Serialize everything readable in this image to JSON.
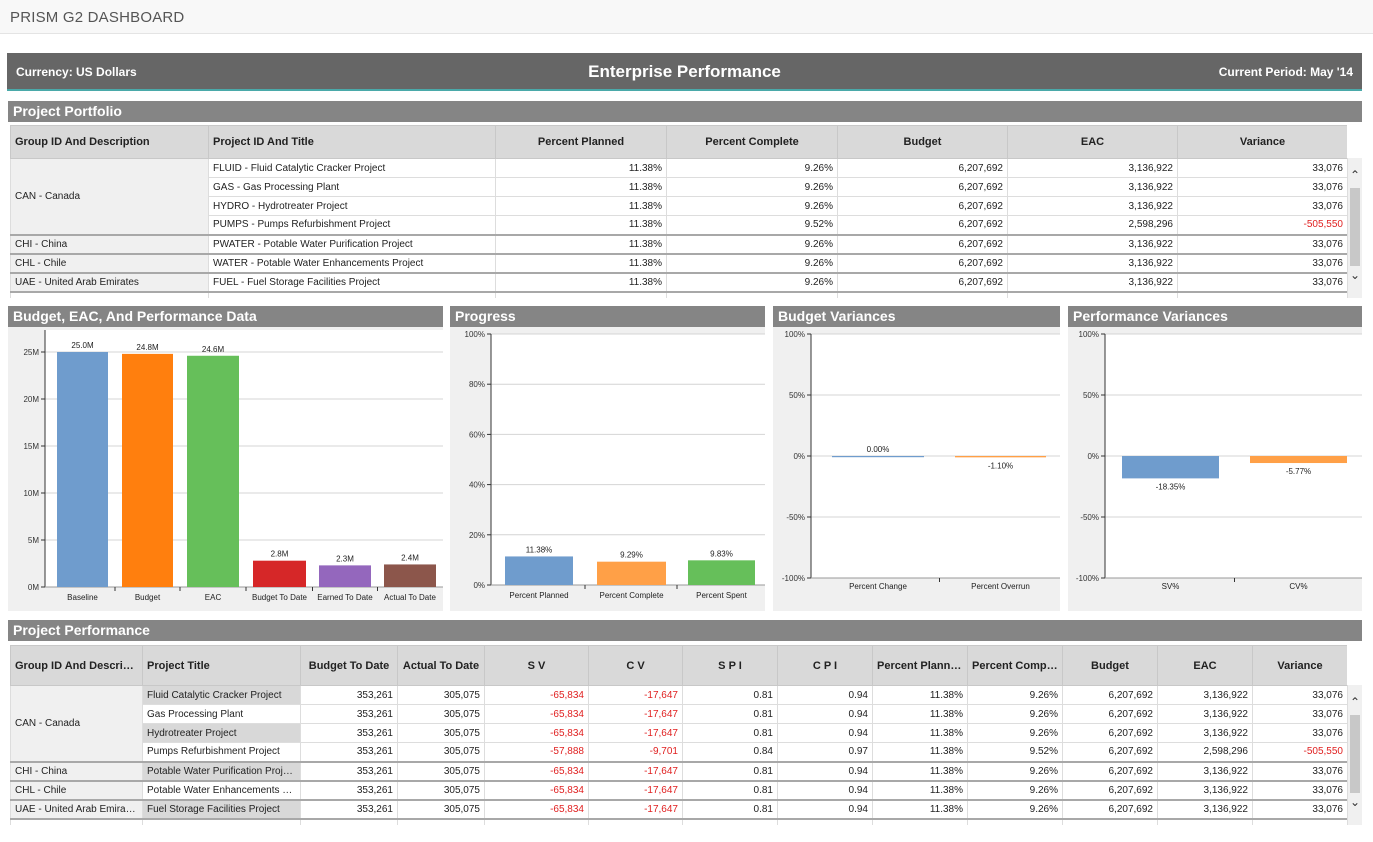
{
  "app": {
    "title": "PRISM G2 DASHBOARD"
  },
  "header": {
    "currency": "Currency: US Dollars",
    "title": "Enterprise Performance",
    "period": "Current Period: May '14"
  },
  "portfolio": {
    "title": "Project Portfolio",
    "columns": [
      "Group ID And Description",
      "Project ID And Title",
      "Percent Planned",
      "Percent Complete",
      "Budget",
      "EAC",
      "Variance"
    ],
    "groups": [
      {
        "group": "CAN - Canada",
        "rows": [
          [
            "FLUID - Fluid Catalytic Cracker Project",
            "11.38%",
            "9.26%",
            "6,207,692",
            "3,136,922",
            "33,076"
          ],
          [
            "GAS - Gas Processing Plant",
            "11.38%",
            "9.26%",
            "6,207,692",
            "3,136,922",
            "33,076"
          ],
          [
            "HYDRO - Hydrotreater Project",
            "11.38%",
            "9.26%",
            "6,207,692",
            "3,136,922",
            "33,076"
          ],
          [
            "PUMPS - Pumps Refurbishment Project",
            "11.38%",
            "9.52%",
            "6,207,692",
            "2,598,296",
            "-505,550"
          ]
        ]
      },
      {
        "group": "CHI - China",
        "rows": [
          [
            "PWATER - Potable Water Purification Project",
            "11.38%",
            "9.26%",
            "6,207,692",
            "3,136,922",
            "33,076"
          ]
        ]
      },
      {
        "group": "CHL - Chile",
        "rows": [
          [
            "WATER - Potable Water Enhancements Project",
            "11.38%",
            "9.26%",
            "6,207,692",
            "3,136,922",
            "33,076"
          ]
        ]
      },
      {
        "group": "UAE - United Arab Emirates",
        "rows": [
          [
            "FUEL - Fuel Storage Facilities Project",
            "11.38%",
            "9.26%",
            "6,207,692",
            "3,136,922",
            "33,076"
          ]
        ]
      }
    ]
  },
  "performance": {
    "title": "Project Performance",
    "columns": [
      "Group ID And Description",
      "Project Title",
      "Budget To Date",
      "Actual To Date",
      "S V",
      "C V",
      "S P I",
      "C P I",
      "Percent Planned",
      "Percent Complete",
      "Budget",
      "EAC",
      "Variance"
    ],
    "groups": [
      {
        "group": "CAN - Canada",
        "rows": [
          [
            "Fluid Catalytic Cracker Project",
            "353,261",
            "305,075",
            "-65,834",
            "-17,647",
            "0.81",
            "0.94",
            "11.38%",
            "9.26%",
            "6,207,692",
            "3,136,922",
            "33,076"
          ],
          [
            "Gas Processing Plant",
            "353,261",
            "305,075",
            "-65,834",
            "-17,647",
            "0.81",
            "0.94",
            "11.38%",
            "9.26%",
            "6,207,692",
            "3,136,922",
            "33,076"
          ],
          [
            "Hydrotreater Project",
            "353,261",
            "305,075",
            "-65,834",
            "-17,647",
            "0.81",
            "0.94",
            "11.38%",
            "9.26%",
            "6,207,692",
            "3,136,922",
            "33,076"
          ],
          [
            "Pumps Refurbishment Project",
            "353,261",
            "305,075",
            "-57,888",
            "-9,701",
            "0.84",
            "0.97",
            "11.38%",
            "9.52%",
            "6,207,692",
            "2,598,296",
            "-505,550"
          ]
        ]
      },
      {
        "group": "CHI - China",
        "rows": [
          [
            "Potable Water Purification Project",
            "353,261",
            "305,075",
            "-65,834",
            "-17,647",
            "0.81",
            "0.94",
            "11.38%",
            "9.26%",
            "6,207,692",
            "3,136,922",
            "33,076"
          ]
        ]
      },
      {
        "group": "CHL - Chile",
        "rows": [
          [
            "Potable Water Enhancements Proje...",
            "353,261",
            "305,075",
            "-65,834",
            "-17,647",
            "0.81",
            "0.94",
            "11.38%",
            "9.26%",
            "6,207,692",
            "3,136,922",
            "33,076"
          ]
        ]
      },
      {
        "group": "UAE - United Arab Emirates",
        "rows": [
          [
            "Fuel Storage Facilities Project",
            "353,261",
            "305,075",
            "-65,834",
            "-17,647",
            "0.81",
            "0.94",
            "11.38%",
            "9.26%",
            "6,207,692",
            "3,136,922",
            "33,076"
          ]
        ]
      }
    ]
  },
  "colors": {
    "negative": "#e02020",
    "header_bar": "#666666",
    "section_bar": "#858585"
  },
  "chart_data": [
    {
      "type": "bar",
      "title": "Budget, EAC, And Performance Data",
      "categories": [
        "Baseline",
        "Budget",
        "EAC",
        "Budget To Date",
        "Earned To Date",
        "Actual To Date"
      ],
      "values": [
        25000000,
        24800000,
        24600000,
        2800000,
        2300000,
        2400000
      ],
      "data_labels": [
        "25.0M",
        "24.8M",
        "24.6M",
        "2.8M",
        "2.3M",
        "2.4M"
      ],
      "colors": [
        "#6f9ccd",
        "#ff7f0e",
        "#66bf5a",
        "#d62728",
        "#9467bd",
        "#8c564b"
      ],
      "yticks": [
        0,
        5000000,
        10000000,
        15000000,
        20000000,
        25000000
      ],
      "ytick_labels": [
        "0M",
        "5M",
        "10M",
        "15M",
        "20M",
        "25M"
      ],
      "grid": true
    },
    {
      "type": "bar",
      "title": "Progress",
      "categories": [
        "Percent Planned",
        "Percent Complete",
        "Percent Spent"
      ],
      "values": [
        11.38,
        9.29,
        9.83
      ],
      "data_labels": [
        "11.38%",
        "9.29%",
        "9.83%"
      ],
      "colors": [
        "#6f9ccd",
        "#ffa047",
        "#66bf5a"
      ],
      "yticks": [
        0,
        20,
        40,
        60,
        80,
        100
      ],
      "ytick_labels": [
        "0%",
        "20%",
        "40%",
        "60%",
        "80%",
        "100%"
      ],
      "ylim": [
        0,
        100
      ],
      "grid": true
    },
    {
      "type": "bar",
      "title": "Budget Variances",
      "categories": [
        "Percent Change",
        "Percent Overrun"
      ],
      "values": [
        0.0,
        -1.1
      ],
      "data_labels": [
        "0.00%",
        "-1.10%"
      ],
      "colors": [
        "#6f9ccd",
        "#ffa047"
      ],
      "yticks": [
        -100,
        -50,
        0,
        50,
        100
      ],
      "ytick_labels": [
        "-100%",
        "-50%",
        "0%",
        "50%",
        "100%"
      ],
      "ylim": [
        -100,
        100
      ],
      "grid": true
    },
    {
      "type": "bar",
      "title": "Performance Variances",
      "categories": [
        "SV%",
        "CV%"
      ],
      "values": [
        -18.35,
        -5.77
      ],
      "data_labels": [
        "-18.35%",
        "-5.77%"
      ],
      "colors": [
        "#6f9ccd",
        "#ffa047"
      ],
      "yticks": [
        -100,
        -50,
        0,
        50,
        100
      ],
      "ytick_labels": [
        "-100%",
        "-50%",
        "0%",
        "50%",
        "100%"
      ],
      "ylim": [
        -100,
        100
      ],
      "grid": true
    }
  ]
}
